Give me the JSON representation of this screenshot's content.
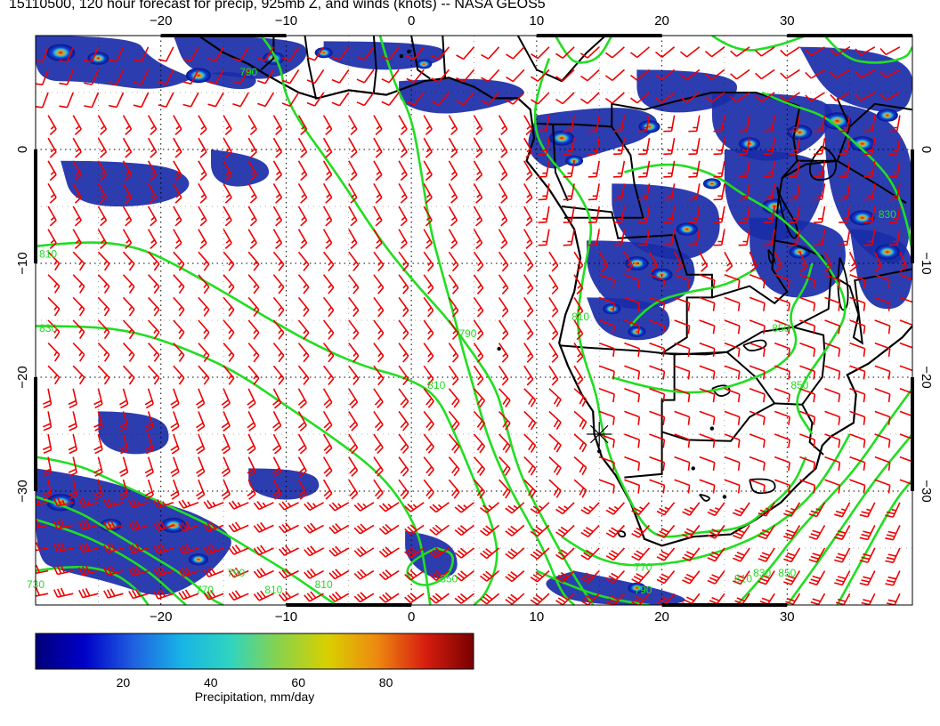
{
  "title": "15110500, 120 hour forecast for precip, 925mb Z, and winds (knots) -- NASA GEOS5",
  "map": {
    "lon_range": [
      -30,
      40
    ],
    "lat_range": [
      -40,
      10
    ],
    "x_ticks": [
      -20,
      -10,
      0,
      10,
      20,
      30
    ],
    "x_tick_labels": [
      "−20",
      "−10",
      "0",
      "10",
      "20",
      "30"
    ],
    "y_ticks": [
      0,
      -10,
      -20,
      -30
    ],
    "y_tick_labels": [
      "0",
      "−10",
      "−20",
      "−30"
    ],
    "grid": "dotted",
    "colors": {
      "coastline": "#000000",
      "contour": "#22dd22",
      "wind_barb": "#ee0000",
      "precip_low": "#0a1a8c"
    },
    "contour_labels": [
      {
        "text": "790",
        "lon": -13,
        "lat": 6.5
      },
      {
        "text": "810",
        "lon": -29,
        "lat": -9.5
      },
      {
        "text": "830",
        "lon": -29,
        "lat": -16
      },
      {
        "text": "790",
        "lon": 4.5,
        "lat": -16.5
      },
      {
        "text": "810",
        "lon": 2,
        "lat": -21
      },
      {
        "text": "810",
        "lon": 13.5,
        "lat": -15
      },
      {
        "text": "850",
        "lon": 3,
        "lat": -38
      },
      {
        "text": "770",
        "lon": 18.5,
        "lat": -37
      },
      {
        "text": "790",
        "lon": 18.5,
        "lat": -39
      },
      {
        "text": "730",
        "lon": -30,
        "lat": -38.5
      },
      {
        "text": "770",
        "lon": -16.5,
        "lat": -39
      },
      {
        "text": "790",
        "lon": -14,
        "lat": -37.5
      },
      {
        "text": "810",
        "lon": -11,
        "lat": -39
      },
      {
        "text": "810",
        "lon": -7,
        "lat": -38.5
      },
      {
        "text": "810",
        "lon": 26.5,
        "lat": -38
      },
      {
        "text": "830",
        "lon": 28,
        "lat": -37.5
      },
      {
        "text": "850",
        "lon": 30,
        "lat": -37.5
      },
      {
        "text": "850",
        "lon": 29.5,
        "lat": -16
      },
      {
        "text": "830",
        "lon": 38,
        "lat": -6
      },
      {
        "text": "850",
        "lon": 31,
        "lat": -21
      }
    ],
    "marker": {
      "symbol": "asterisk",
      "lon": 15,
      "lat": -25
    }
  },
  "colorbar": {
    "label": "Precipitation, mm/day",
    "tick_values": [
      20,
      40,
      60,
      80
    ],
    "range": [
      0,
      100
    ],
    "stops": [
      "#00007a",
      "#0000c8",
      "#1f5fe0",
      "#18b4e6",
      "#2fd4c0",
      "#8ad24a",
      "#d8d000",
      "#ee8a10",
      "#d81e10",
      "#780000"
    ]
  }
}
